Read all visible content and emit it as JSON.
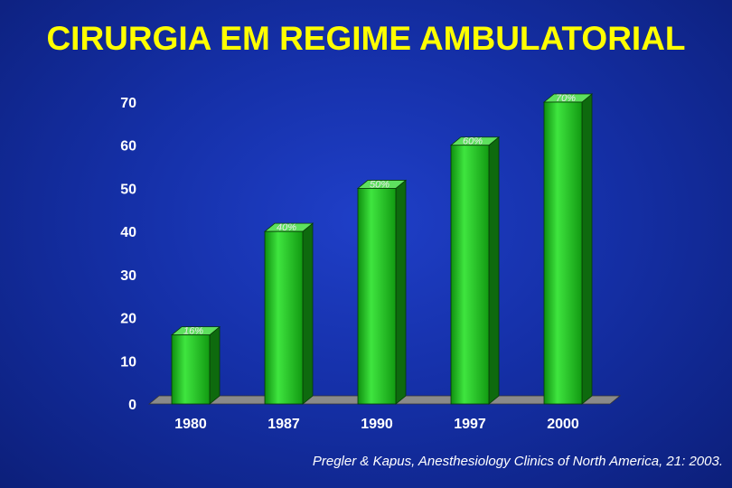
{
  "title": "CIRURGIA EM REGIME AMBULATORIAL",
  "citation": "Pregler & Kapus, Anesthesiology Clinics of North America, 21: 2003.",
  "colors": {
    "title": "#ffff00",
    "bar_front": "#22c922",
    "bar_side": "#0e6a0e",
    "bar_top": "#5ee05e",
    "floor": "#8a8a8a",
    "data_label": "#e8e8e8"
  },
  "chart_data": {
    "type": "bar",
    "categories": [
      "1980",
      "1987",
      "1990",
      "1997",
      "2000"
    ],
    "values": [
      16,
      40,
      50,
      60,
      70
    ],
    "data_labels": [
      "16%",
      "40%",
      "50%",
      "60%",
      "70%"
    ],
    "y_ticks": [
      "0",
      "10",
      "20",
      "30",
      "40",
      "50",
      "60",
      "70"
    ],
    "ylim": [
      0,
      70
    ],
    "grid": false,
    "legend": "none",
    "style": "3d"
  }
}
